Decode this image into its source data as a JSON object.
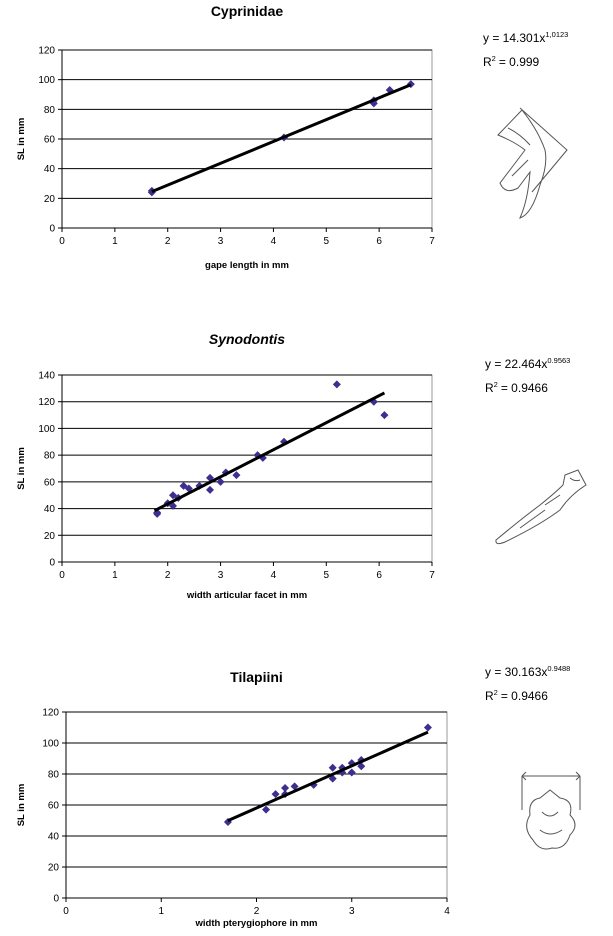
{
  "chart_data": [
    {
      "type": "scatter",
      "title": "Cyprinidae",
      "x_label": "gape length in mm",
      "y_label": "SL in mm",
      "x": [
        1.7,
        1.7,
        4.2,
        5.9,
        5.9,
        6.2,
        6.6
      ],
      "y": [
        25,
        24,
        61,
        84,
        86,
        93,
        97
      ],
      "color": "#3d2f8f",
      "trendline": {
        "x": [
          1.7,
          6.6
        ],
        "y": [
          24.5,
          96.6
        ],
        "color": "#000000"
      },
      "equation": {
        "text": "y = 14.301x",
        "exponent": "1,0123"
      },
      "r_squared": {
        "text": "R",
        "exponent": "2",
        "value": "= 0.999"
      },
      "xlim": [
        0,
        7
      ],
      "ylim": [
        0,
        120
      ],
      "xticks": [
        0,
        1,
        2,
        3,
        4,
        5,
        6,
        7
      ],
      "yticks": [
        0,
        20,
        40,
        60,
        80,
        100,
        120
      ],
      "grid": true
    },
    {
      "type": "scatter",
      "title": "Synodontis",
      "x_label": "width articular facet in mm",
      "y_label": "SL in mm",
      "x": [
        1.8,
        1.8,
        2.0,
        2.1,
        2.1,
        2.2,
        2.3,
        2.4,
        2.6,
        2.8,
        2.8,
        3.0,
        3.1,
        3.3,
        3.7,
        3.8,
        4.2,
        5.2,
        5.9,
        6.1
      ],
      "y": [
        36,
        37,
        44,
        42,
        50,
        48,
        57,
        55,
        57,
        63,
        54,
        60,
        67,
        65,
        80,
        78,
        90,
        133,
        120,
        110
      ],
      "color": "#3d2f8f",
      "trendline": {
        "x": [
          1.75,
          6.1
        ],
        "y": [
          38.4,
          126.6
        ],
        "color": "#000000"
      },
      "equation": {
        "text": "y = 22.464x",
        "exponent": "0.9563"
      },
      "r_squared": {
        "text": "R",
        "exponent": "2",
        "value": "= 0.9466"
      },
      "xlim": [
        0,
        7
      ],
      "ylim": [
        0,
        140
      ],
      "xticks": [
        0,
        1,
        2,
        3,
        4,
        5,
        6,
        7
      ],
      "yticks": [
        0,
        20,
        40,
        60,
        80,
        100,
        120,
        140
      ],
      "grid": true
    },
    {
      "type": "scatter",
      "title": "Tilapiini",
      "x_label": "width pterygiophore in mm",
      "y_label": "SL in mm",
      "x": [
        1.7,
        2.1,
        2.2,
        2.3,
        2.3,
        2.4,
        2.6,
        2.8,
        2.8,
        2.9,
        2.9,
        3.0,
        3.0,
        3.1,
        3.1,
        3.8
      ],
      "y": [
        49,
        57,
        67,
        67,
        71,
        72,
        73,
        77,
        84,
        81,
        84,
        81,
        87,
        85,
        89,
        110
      ],
      "color": "#3d2f8f",
      "trendline": {
        "x": [
          1.7,
          3.8
        ],
        "y": [
          49.9,
          107.0
        ],
        "color": "#000000"
      },
      "equation": {
        "text": "y = 30.163x",
        "exponent": "0.9488"
      },
      "r_squared": {
        "text": "R",
        "exponent": "2",
        "value": "= 0.9466"
      },
      "xlim": [
        0,
        4
      ],
      "ylim": [
        0,
        120
      ],
      "xticks": [
        0,
        1,
        2,
        3,
        4
      ],
      "yticks": [
        0,
        20,
        40,
        60,
        80,
        100,
        120
      ],
      "grid": true
    }
  ]
}
